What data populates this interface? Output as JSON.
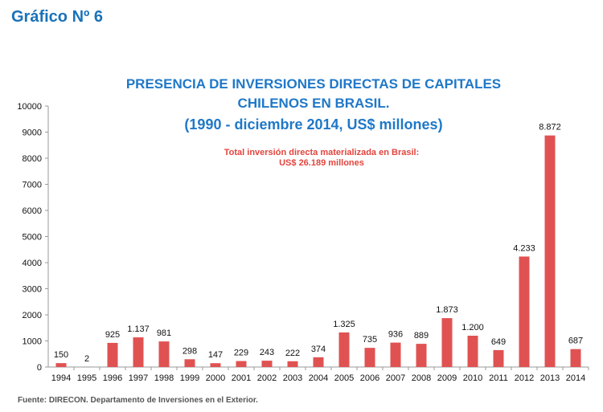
{
  "heading": "Gráfico Nº 6",
  "source": "Fuente: DIRECON. Departamento de Inversiones en el Exterior.",
  "chart_data": {
    "type": "bar",
    "title_lines": [
      "PRESENCIA DE INVERSIONES DIRECTAS  DE CAPITALES",
      "CHILENOS EN BRASIL.",
      "(1990 - diciembre 2014, US$ millones)"
    ],
    "annotation_lines": [
      "Total inversión directa materializada en Brasil:",
      "US$ 26.189 millones"
    ],
    "categories": [
      "1994",
      "1995",
      "1996",
      "1997",
      "1998",
      "1999",
      "2000",
      "2001",
      "2002",
      "2003",
      "2004",
      "2005",
      "2006",
      "2007",
      "2008",
      "2009",
      "2010",
      "2011",
      "2012",
      "2013",
      "2014"
    ],
    "values": [
      150,
      2,
      925,
      1137,
      981,
      298,
      147,
      229,
      243,
      222,
      374,
      1325,
      735,
      936,
      889,
      1873,
      1200,
      649,
      4233,
      8872,
      687
    ],
    "data_labels": [
      "150",
      "2",
      "925",
      "1.137",
      "981",
      "298",
      "147",
      "229",
      "243",
      "222",
      "374",
      "1.325",
      "735",
      "936",
      "889",
      "1.873",
      "1.200",
      "649",
      "4.233",
      "8.872",
      "687"
    ],
    "ylim": [
      0,
      10000
    ],
    "yticks": [
      "0",
      "1000",
      "2000",
      "3000",
      "4000",
      "5000",
      "6000",
      "7000",
      "8000",
      "9000",
      "10000"
    ],
    "bar_color": "#e05252",
    "grid": false,
    "legend": "none"
  }
}
